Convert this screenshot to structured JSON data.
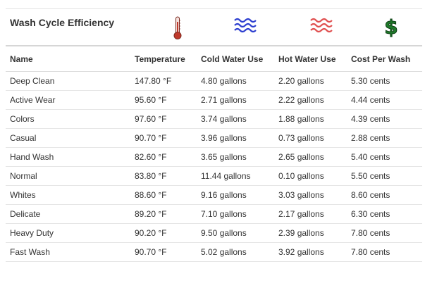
{
  "header": {
    "title": "Wash Cycle Efficiency"
  },
  "icons": {
    "temperature": "thermometer-icon",
    "cold_water": "cold-water-waves-icon",
    "hot_water": "hot-water-waves-icon",
    "cost": "dollar-sign-icon",
    "colors": {
      "thermometer": "#c0392b",
      "cold": "#2d3fd0",
      "hot": "#e05050",
      "dollar": "#1f7a2a"
    }
  },
  "table": {
    "columns": [
      "Name",
      "Temperature",
      "Cold Water Use",
      "Hot Water Use",
      "Cost Per Wash"
    ],
    "rows": [
      [
        "Deep Clean",
        "147.80 °F",
        "4.80 gallons",
        "2.20 gallons",
        "5.30 cents"
      ],
      [
        "Active Wear",
        "95.60 °F",
        "2.71 gallons",
        "2.22 gallons",
        "4.44 cents"
      ],
      [
        "Colors",
        "97.60 °F",
        "3.74 gallons",
        "1.88 gallons",
        "4.39 cents"
      ],
      [
        "Casual",
        "90.70 °F",
        "3.96 gallons",
        "0.73 gallons",
        "2.88 cents"
      ],
      [
        "Hand Wash",
        "82.60 °F",
        "3.65 gallons",
        "2.65 gallons",
        "5.40 cents"
      ],
      [
        "Normal",
        "83.80 °F",
        "11.44 gallons",
        "0.10 gallons",
        "5.50 cents"
      ],
      [
        "Whites",
        "88.60 °F",
        "9.16 gallons",
        "3.03 gallons",
        "8.60 cents"
      ],
      [
        "Delicate",
        "89.20 °F",
        "7.10 gallons",
        "2.17 gallons",
        "6.30 cents"
      ],
      [
        "Heavy Duty",
        "90.20 °F",
        "9.50 gallons",
        "2.39 gallons",
        "7.80 cents"
      ],
      [
        "Fast Wash",
        "90.70 °F",
        "5.02 gallons",
        "3.92 gallons",
        "7.80 cents"
      ]
    ]
  }
}
